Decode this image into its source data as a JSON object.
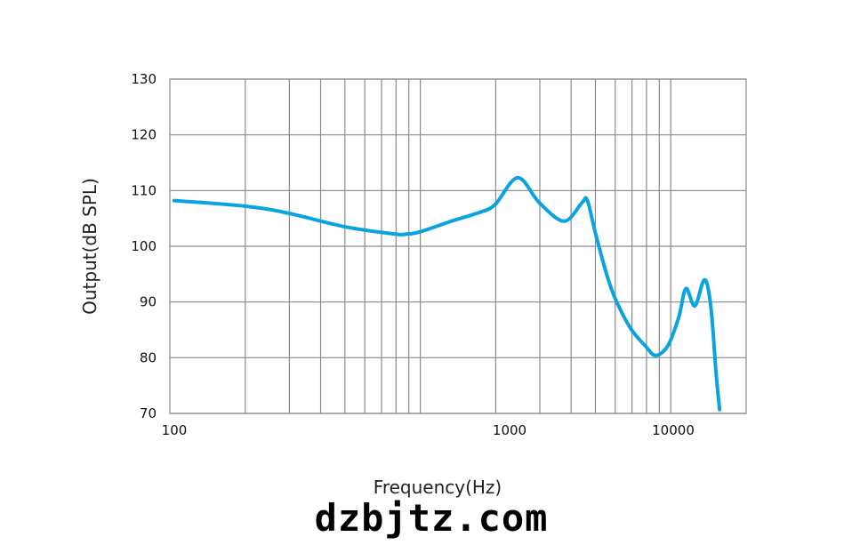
{
  "chart_data": {
    "type": "line",
    "title": "",
    "xlabel": "Frequency(Hz)",
    "ylabel": "Output(dB SPL)",
    "x_scale": "log",
    "xlim": [
      100,
      20000
    ],
    "ylim": [
      70,
      130
    ],
    "grid": true,
    "x_tick_labels": [
      "100",
      "1000",
      "10000"
    ],
    "y_ticks": [
      130,
      120,
      110,
      100,
      90,
      80,
      70
    ],
    "line_color": "#0aa3e2",
    "series": [
      {
        "x": [
          104,
          200,
          300,
          500,
          790,
          885,
          1000,
          1350,
          1730,
          1990,
          2450,
          2990,
          3750,
          4420,
          4640,
          5000,
          5560,
          6030,
          6930,
          7960,
          8710,
          9750,
          10770,
          11490,
          12480,
          13640,
          14450,
          15170,
          15670
        ],
        "y": [
          108.2,
          107.2,
          105.9,
          103.5,
          102.2,
          102.2,
          102.6,
          104.6,
          106.1,
          107.5,
          112.3,
          107.8,
          104.5,
          107.8,
          108.3,
          102.4,
          94.8,
          90.4,
          85.2,
          82.0,
          80.4,
          82.2,
          87.3,
          92.4,
          89.3,
          94.0,
          89.2,
          77.2,
          70.7
        ]
      }
    ]
  },
  "watermark": "dzbjtz.com"
}
